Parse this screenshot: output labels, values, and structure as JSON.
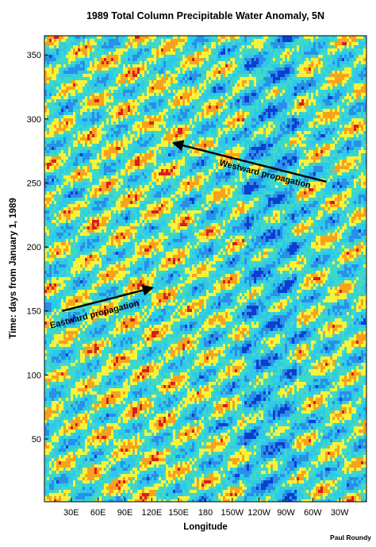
{
  "chart_data": {
    "type": "heatmap",
    "title": "1989 Total Column Precipitable Water Anomaly, 5N",
    "xlabel": "Longitude",
    "ylabel": "Time:  days from January 1, 1989",
    "x_ticks": [
      {
        "label": "30E",
        "lon": 30
      },
      {
        "label": "60E",
        "lon": 60
      },
      {
        "label": "90E",
        "lon": 90
      },
      {
        "label": "120E",
        "lon": 120
      },
      {
        "label": "150E",
        "lon": 150
      },
      {
        "label": "180",
        "lon": 180
      },
      {
        "label": "150W",
        "lon": 210
      },
      {
        "label": "120W",
        "lon": 240
      },
      {
        "label": "90W",
        "lon": 270
      },
      {
        "label": "60W",
        "lon": 300
      },
      {
        "label": "30W",
        "lon": 330
      }
    ],
    "xlim": [
      0,
      360
    ],
    "y_ticks": [
      50,
      100,
      150,
      200,
      250,
      300,
      350
    ],
    "ylim": [
      1,
      365
    ],
    "grid": false,
    "colormap": [
      "#0a3fcf",
      "#2a8fe6",
      "#2ec9ea",
      "#3fd8c8",
      "#f7f33c",
      "#f7a21e",
      "#d6201a"
    ],
    "annotations": [
      {
        "text": "Westward propagation",
        "from": {
          "lon": 315,
          "day": 251
        },
        "to": {
          "lon": 145,
          "day": 281
        }
      },
      {
        "text": "Eastward propagation",
        "from": {
          "lon": 20,
          "day": 150
        },
        "to": {
          "lon": 120,
          "day": 168
        }
      }
    ],
    "credit": "Paul Roundy"
  }
}
